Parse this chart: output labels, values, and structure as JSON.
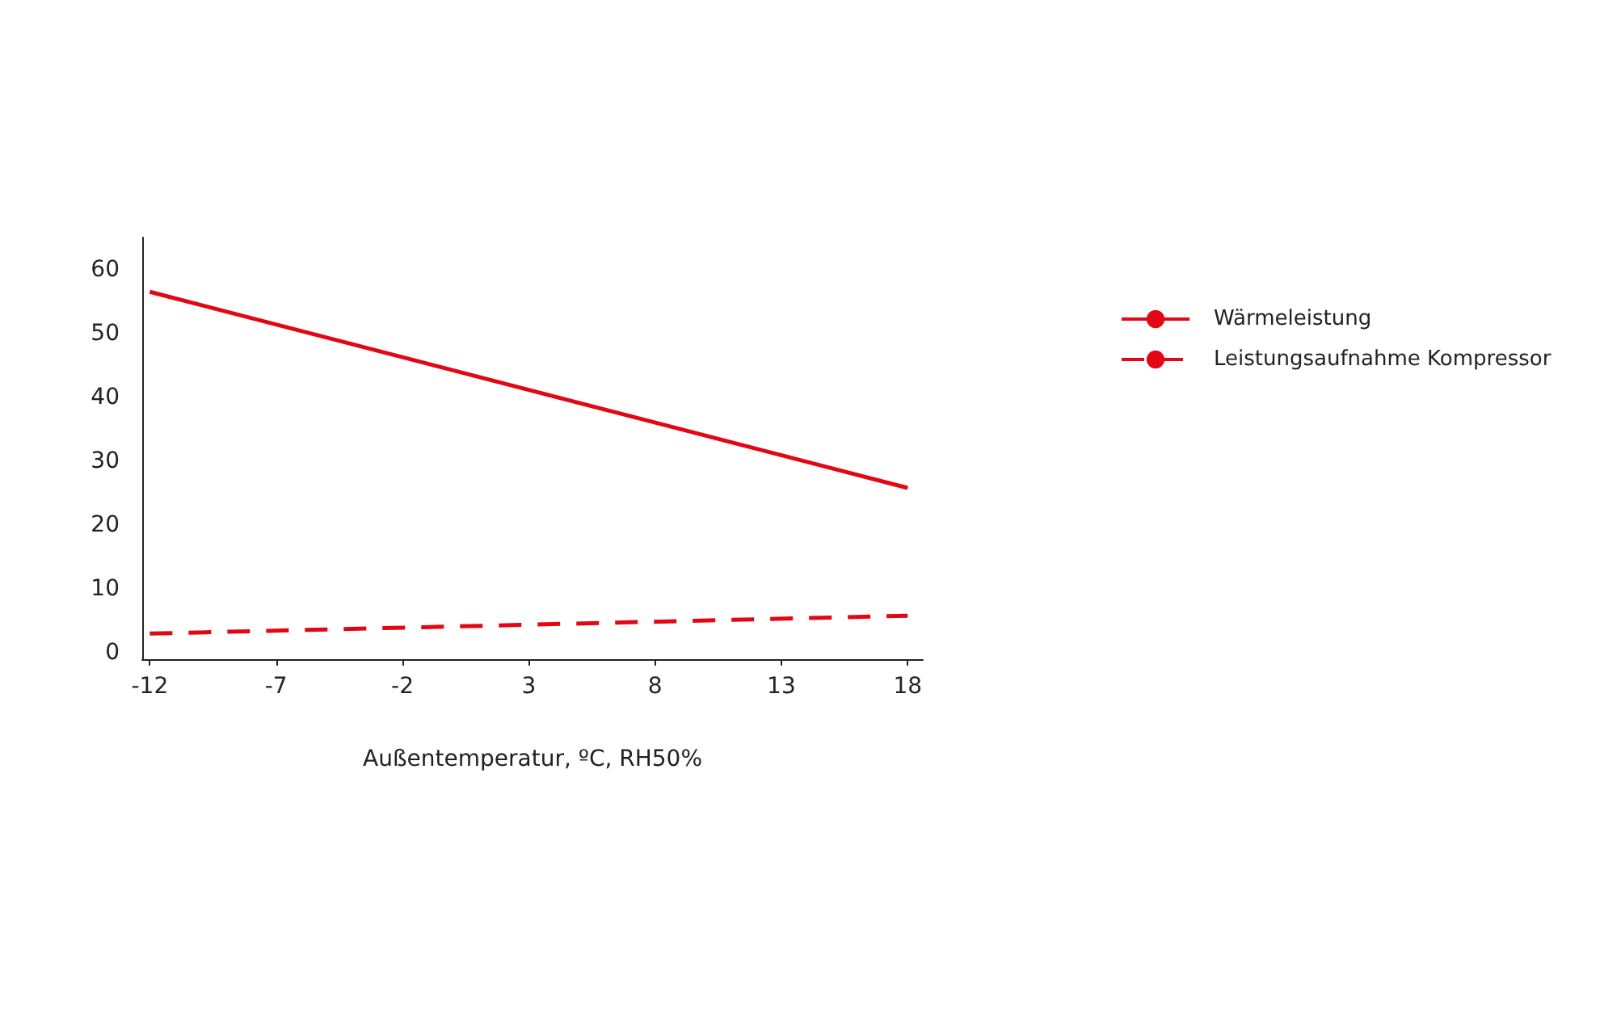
{
  "chart_data": {
    "type": "line",
    "xlabel": "Außentemperatur, ºC, RH50%",
    "x": [
      -12,
      18
    ],
    "series": [
      {
        "name": "Wärmeleistung",
        "color": "#e30613",
        "values": [
          56.5,
          25.8
        ],
        "line_style": "solid"
      },
      {
        "name": "Leistungsaufnahme Kompressor",
        "color": "#e30613",
        "values": [
          3,
          5.8
        ],
        "line_style": "dashed"
      }
    ],
    "xlim": [
      -12.3,
      18.6
    ],
    "xticks": [
      -12,
      -7,
      -2,
      3,
      8,
      13,
      18
    ],
    "ylim": [
      -1,
      65
    ],
    "yticks": [
      0,
      10,
      20,
      30,
      40,
      50,
      60
    ],
    "legend": "right"
  }
}
